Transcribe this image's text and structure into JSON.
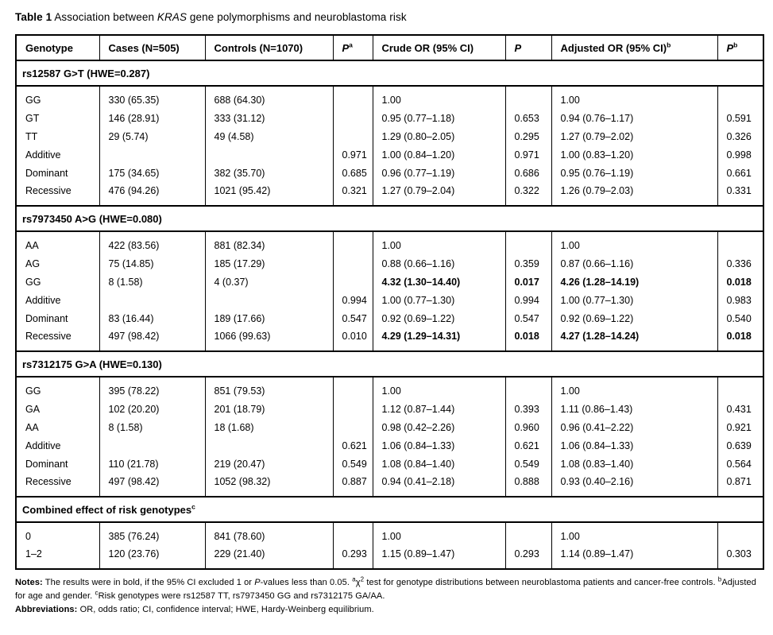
{
  "title": {
    "label": "Table 1",
    "before_gene": " Association between ",
    "gene": "KRAS",
    "after_gene": " gene polymorphisms and neuroblastoma risk"
  },
  "table": {
    "columns": [
      {
        "label": "Genotype",
        "sup": ""
      },
      {
        "label": "Cases (N=505)",
        "sup": ""
      },
      {
        "label": "Controls (N=1070)",
        "sup": ""
      },
      {
        "label": "P",
        "sup": "a"
      },
      {
        "label": "Crude OR (95% CI)",
        "sup": ""
      },
      {
        "label": "P",
        "sup": ""
      },
      {
        "label": "Adjusted OR (95% CI)",
        "sup": "b"
      },
      {
        "label": "P",
        "sup": "b"
      }
    ],
    "sections": [
      {
        "header": "rs12587 G>T (HWE=0.287)",
        "header_sup": "",
        "rows": [
          {
            "cells": [
              "GG",
              "330 (65.35)",
              "688 (64.30)",
              "",
              "1.00",
              "",
              "1.00",
              ""
            ],
            "bold": []
          },
          {
            "cells": [
              "GT",
              "146 (28.91)",
              "333 (31.12)",
              "",
              "0.95 (0.77–1.18)",
              "0.653",
              "0.94 (0.76–1.17)",
              "0.591"
            ],
            "bold": []
          },
          {
            "cells": [
              "TT",
              "29 (5.74)",
              "49 (4.58)",
              "",
              "1.29 (0.80–2.05)",
              "0.295",
              "1.27 (0.79–2.02)",
              "0.326"
            ],
            "bold": []
          },
          {
            "cells": [
              "Additive",
              "",
              "",
              "0.971",
              "1.00 (0.84–1.20)",
              "0.971",
              "1.00 (0.83–1.20)",
              "0.998"
            ],
            "bold": []
          },
          {
            "cells": [
              "Dominant",
              "175 (34.65)",
              "382 (35.70)",
              "0.685",
              "0.96 (0.77–1.19)",
              "0.686",
              "0.95 (0.76–1.19)",
              "0.661"
            ],
            "bold": []
          },
          {
            "cells": [
              "Recessive",
              "476 (94.26)",
              "1021 (95.42)",
              "0.321",
              "1.27 (0.79–2.04)",
              "0.322",
              "1.26 (0.79–2.03)",
              "0.331"
            ],
            "bold": []
          }
        ]
      },
      {
        "header": "rs7973450 A>G (HWE=0.080)",
        "header_sup": "",
        "rows": [
          {
            "cells": [
              "AA",
              "422 (83.56)",
              "881 (82.34)",
              "",
              "1.00",
              "",
              "1.00",
              ""
            ],
            "bold": []
          },
          {
            "cells": [
              "AG",
              "75 (14.85)",
              "185 (17.29)",
              "",
              "0.88 (0.66–1.16)",
              "0.359",
              "0.87 (0.66–1.16)",
              "0.336"
            ],
            "bold": []
          },
          {
            "cells": [
              "GG",
              "8 (1.58)",
              "4 (0.37)",
              "",
              "4.32 (1.30–14.40)",
              "0.017",
              "4.26 (1.28–14.19)",
              "0.018"
            ],
            "bold": [
              4,
              5,
              6,
              7
            ]
          },
          {
            "cells": [
              "Additive",
              "",
              "",
              "0.994",
              "1.00 (0.77–1.30)",
              "0.994",
              "1.00 (0.77–1.30)",
              "0.983"
            ],
            "bold": []
          },
          {
            "cells": [
              "Dominant",
              "83 (16.44)",
              "189 (17.66)",
              "0.547",
              "0.92 (0.69–1.22)",
              "0.547",
              "0.92 (0.69–1.22)",
              "0.540"
            ],
            "bold": []
          },
          {
            "cells": [
              "Recessive",
              "497 (98.42)",
              "1066 (99.63)",
              "0.010",
              "4.29 (1.29–14.31)",
              "0.018",
              "4.27 (1.28–14.24)",
              "0.018"
            ],
            "bold": [
              4,
              5,
              6,
              7
            ]
          }
        ]
      },
      {
        "header": "rs7312175 G>A (HWE=0.130)",
        "header_sup": "",
        "rows": [
          {
            "cells": [
              "GG",
              "395 (78.22)",
              "851 (79.53)",
              "",
              "1.00",
              "",
              "1.00",
              ""
            ],
            "bold": []
          },
          {
            "cells": [
              "GA",
              "102 (20.20)",
              "201 (18.79)",
              "",
              "1.12 (0.87–1.44)",
              "0.393",
              "1.11 (0.86–1.43)",
              "0.431"
            ],
            "bold": []
          },
          {
            "cells": [
              "AA",
              "8 (1.58)",
              "18 (1.68)",
              "",
              "0.98 (0.42–2.26)",
              "0.960",
              "0.96 (0.41–2.22)",
              "0.921"
            ],
            "bold": []
          },
          {
            "cells": [
              "Additive",
              "",
              "",
              "0.621",
              "1.06 (0.84–1.33)",
              "0.621",
              "1.06 (0.84–1.33)",
              "0.639"
            ],
            "bold": []
          },
          {
            "cells": [
              "Dominant",
              "110 (21.78)",
              "219 (20.47)",
              "0.549",
              "1.08 (0.84–1.40)",
              "0.549",
              "1.08 (0.83–1.40)",
              "0.564"
            ],
            "bold": []
          },
          {
            "cells": [
              "Recessive",
              "497 (98.42)",
              "1052 (98.32)",
              "0.887",
              "0.94 (0.41–2.18)",
              "0.888",
              "0.93 (0.40–2.16)",
              "0.871"
            ],
            "bold": []
          }
        ]
      },
      {
        "header": "Combined effect of risk genotypes",
        "header_sup": "c",
        "rows": [
          {
            "cells": [
              "0",
              "385 (76.24)",
              "841 (78.60)",
              "",
              "1.00",
              "",
              "1.00",
              ""
            ],
            "bold": []
          },
          {
            "cells": [
              "1–2",
              "120 (23.76)",
              "229 (21.40)",
              "0.293",
              "1.15 (0.89–1.47)",
              "0.293",
              "1.14 (0.89–1.47)",
              "0.303"
            ],
            "bold": []
          }
        ]
      }
    ]
  },
  "notes": {
    "label": "Notes:",
    "t1": " The results were in bold, if the 95% CI excluded 1 or ",
    "p_italic": "P",
    "t2": "-values less than 0.05. ",
    "sup_a": "a",
    "chi": "χ",
    "sup_2": "2",
    "t3": " test for genotype distributions between neuroblastoma patients and cancer-free controls. ",
    "sup_b": "b",
    "t4": "Adjusted for age and gender. ",
    "sup_c": "c",
    "t5": "Risk genotypes were rs12587 TT, rs7973450 GG and rs7312175 GA/AA."
  },
  "abbreviations": {
    "label": "Abbreviations:",
    "text": " OR, odds ratio; CI, confidence interval; HWE, Hardy-Weinberg equilibrium."
  }
}
